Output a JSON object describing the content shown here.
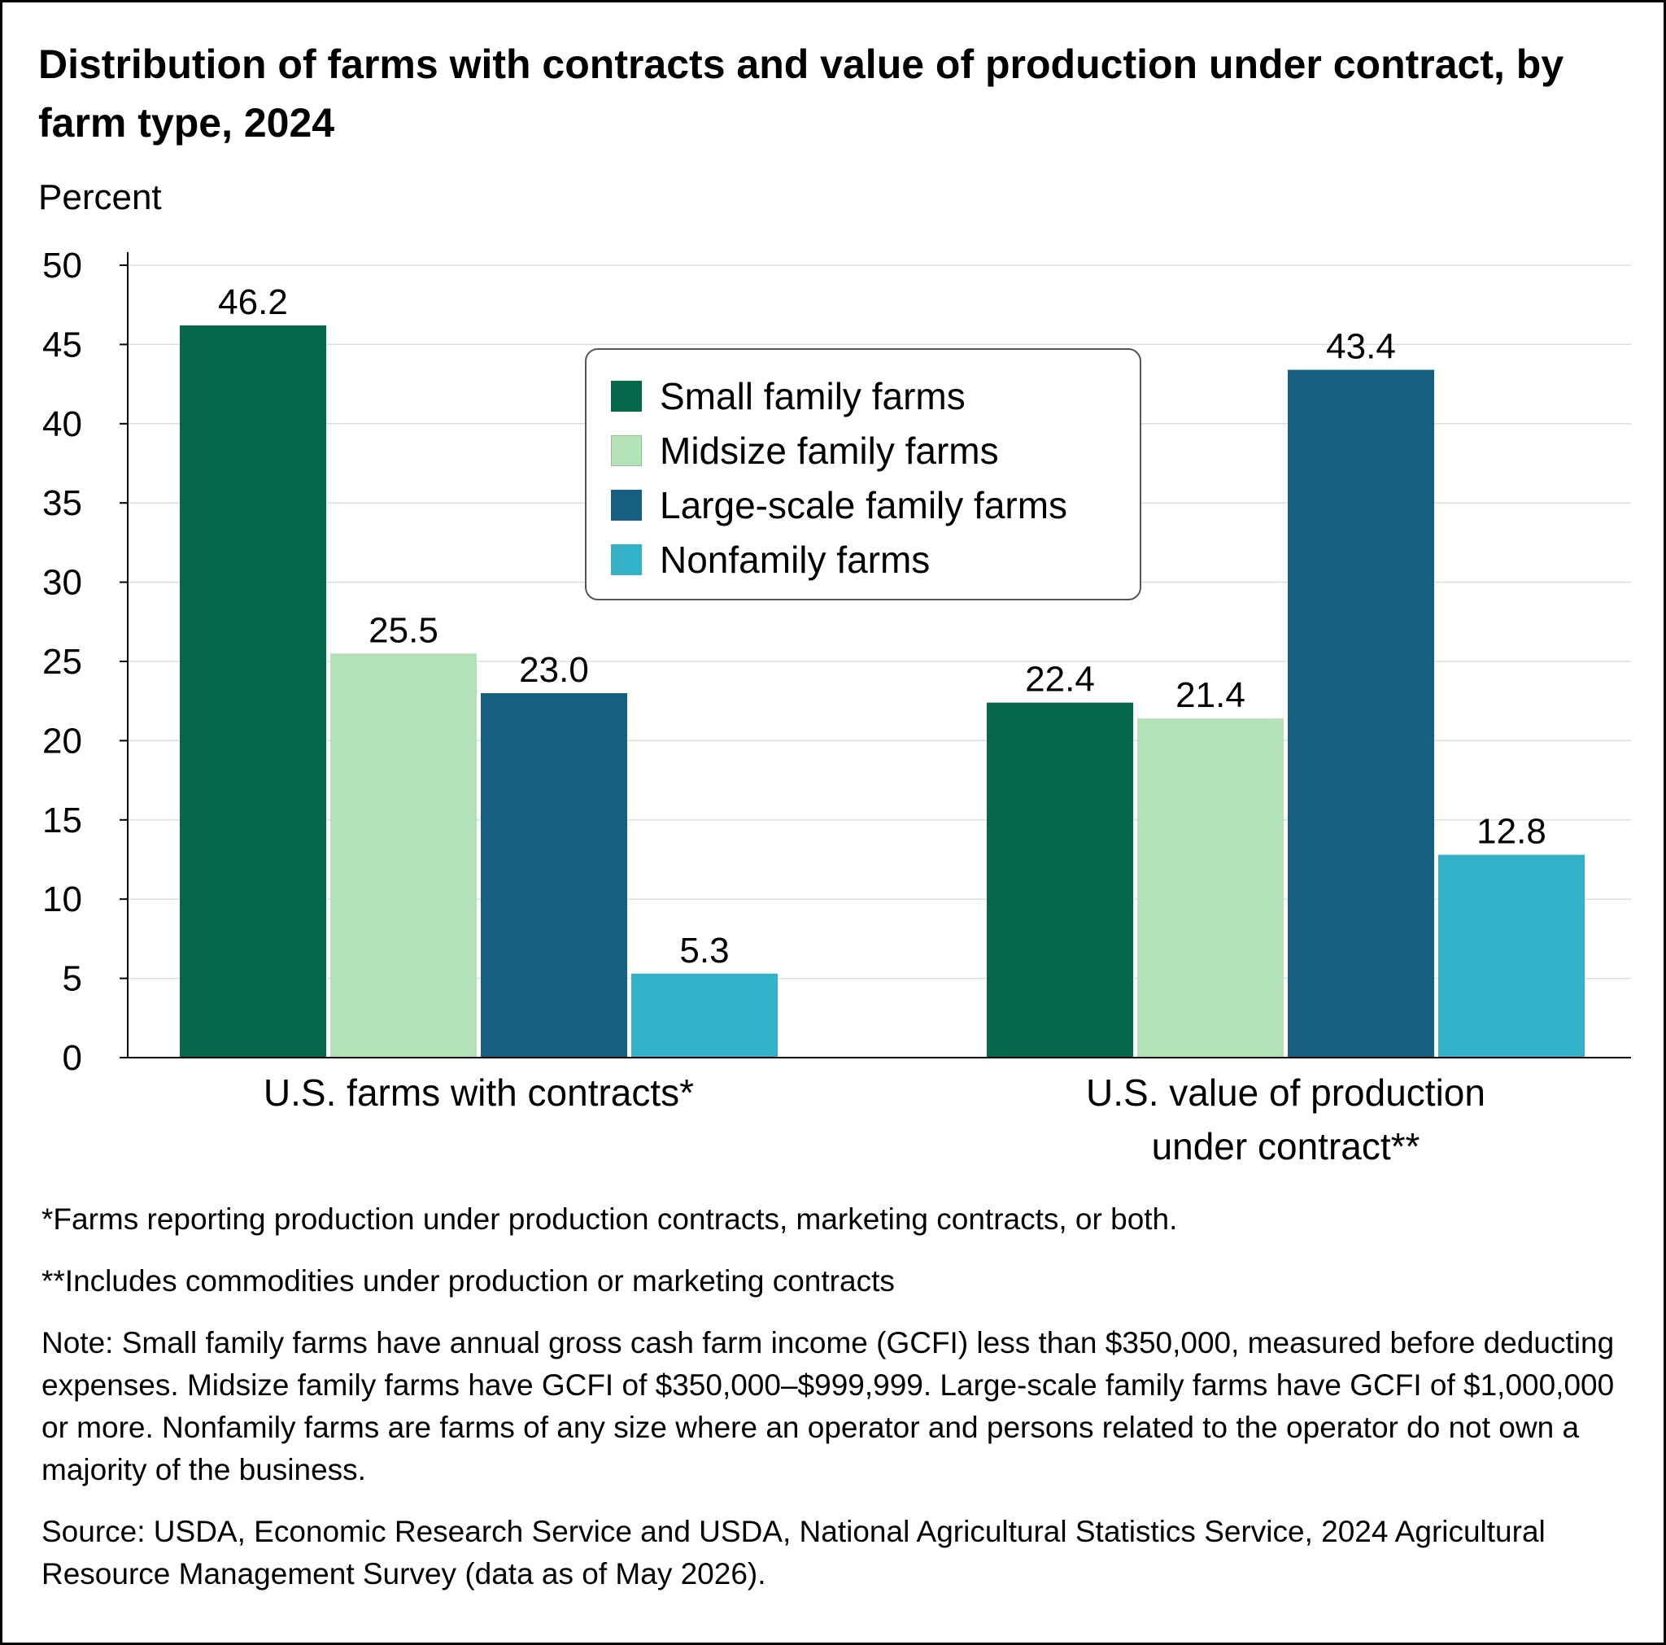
{
  "title": "Distribution of farms with contracts and value of production under contract, by farm type, 2024",
  "notes": [
    "*Farms reporting production under production contracts, marketing contracts, or both.",
    "**Includes commodities under production or marketing contracts",
    "Note: Small family farms have annual gross cash farm income (GCFI) less than $350,000, measured before deducting expenses. Midsize family farms have GCFI of $350,000–$999,999. Large-scale family farms have GCFI of $1,000,000 or more. Nonfamily farms are farms of any size where an operator and persons related to the operator do not own a majority of the business.",
    "Source: USDA, Economic Research Service and USDA, National Agricultural Statistics Service, 2024 Agricultural Resource Management Survey (data as of May 2026)."
  ],
  "chart_data": {
    "type": "bar",
    "title": "Distribution of farms with contracts and value of production under contract, by farm type, 2024",
    "ylabel": "Percent",
    "xlabel": "",
    "ylim": [
      0,
      50
    ],
    "yticks": [
      0,
      5,
      10,
      15,
      20,
      25,
      30,
      35,
      40,
      45,
      50
    ],
    "grid": true,
    "legend_position": "top-center",
    "categories": [
      [
        "U.S. farms with contracts*"
      ],
      [
        "U.S. value of production",
        "under contract**"
      ]
    ],
    "series": [
      {
        "name": "Small family farms",
        "values": [
          46.2,
          22.4
        ],
        "labels": [
          "46.2",
          "22.4"
        ],
        "color": "#05684b"
      },
      {
        "name": "Midsize family farms",
        "values": [
          25.5,
          21.4
        ],
        "labels": [
          "25.5",
          "21.4"
        ],
        "color": "#b3e2b9"
      },
      {
        "name": "Large-scale family farms",
        "values": [
          23.0,
          43.4
        ],
        "labels": [
          "23.0",
          "43.4"
        ],
        "color": "#175f80"
      },
      {
        "name": "Nonfamily farms",
        "values": [
          5.3,
          12.8
        ],
        "labels": [
          "5.3",
          "12.8"
        ],
        "color": "#33b1c8"
      }
    ]
  }
}
